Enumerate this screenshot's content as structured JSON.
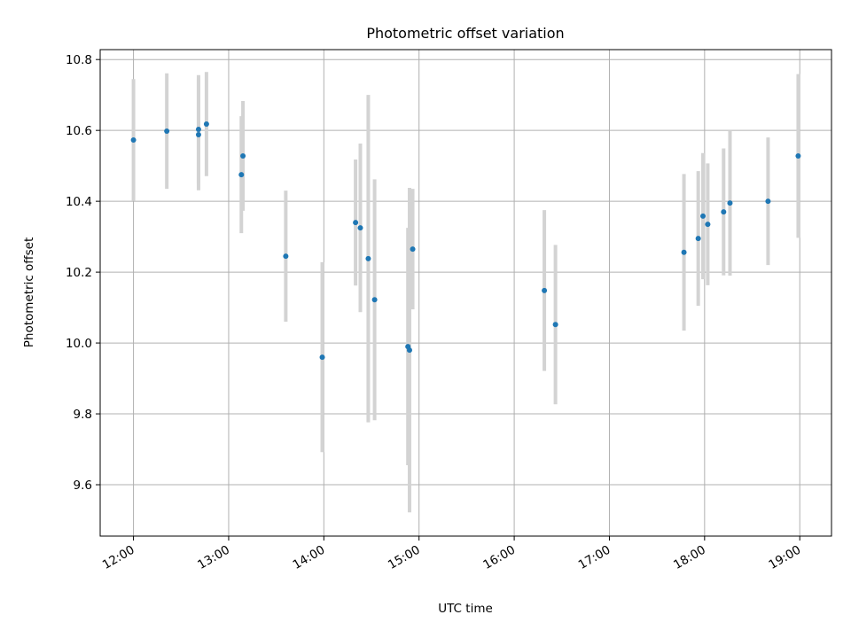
{
  "chart_data": {
    "type": "scatter",
    "title": "Photometric offset variation",
    "xlabel": "UTC time",
    "ylabel": "Photometric offset",
    "x_ticks": [
      "12:00",
      "13:00",
      "14:00",
      "15:00",
      "16:00",
      "17:00",
      "18:00",
      "19:00"
    ],
    "y_ticks": [
      "9.6",
      "9.8",
      "10.0",
      "10.2",
      "10.4",
      "10.6",
      "10.8"
    ],
    "xlim": [
      "11:39",
      "19:20"
    ],
    "ylim": [
      9.455,
      10.828
    ],
    "grid": true,
    "marker_color": "#1f77b4",
    "errorbar_color": "#d3d3d3",
    "points": [
      {
        "x": "12:00",
        "y": 10.573,
        "err": 0.172
      },
      {
        "x": "12:21",
        "y": 10.598,
        "err": 0.163
      },
      {
        "x": "12:41",
        "y": 10.603,
        "err": 0.153
      },
      {
        "x": "12:41",
        "y": 10.588,
        "err": 0.157
      },
      {
        "x": "12:46",
        "y": 10.618,
        "err": 0.147
      },
      {
        "x": "13:08",
        "y": 10.475,
        "err": 0.165
      },
      {
        "x": "13:09",
        "y": 10.528,
        "err": 0.155
      },
      {
        "x": "13:36",
        "y": 10.245,
        "err": 0.185
      },
      {
        "x": "13:59",
        "y": 9.96,
        "err": 0.268
      },
      {
        "x": "14:20",
        "y": 10.34,
        "err": 0.178
      },
      {
        "x": "14:23",
        "y": 10.325,
        "err": 0.238
      },
      {
        "x": "14:28",
        "y": 10.238,
        "err": 0.462
      },
      {
        "x": "14:32",
        "y": 10.122,
        "err": 0.34
      },
      {
        "x": "14:53",
        "y": 9.99,
        "err": 0.335
      },
      {
        "x": "14:54",
        "y": 9.98,
        "err": 0.458
      },
      {
        "x": "14:56",
        "y": 10.265,
        "err": 0.17
      },
      {
        "x": "16:19",
        "y": 10.148,
        "err": 0.227
      },
      {
        "x": "16:26",
        "y": 10.052,
        "err": 0.225
      },
      {
        "x": "17:47",
        "y": 10.256,
        "err": 0.221
      },
      {
        "x": "17:56",
        "y": 10.295,
        "err": 0.19
      },
      {
        "x": "17:59",
        "y": 10.358,
        "err": 0.178
      },
      {
        "x": "18:02",
        "y": 10.335,
        "err": 0.172
      },
      {
        "x": "18:12",
        "y": 10.37,
        "err": 0.179
      },
      {
        "x": "18:16",
        "y": 10.395,
        "err": 0.205
      },
      {
        "x": "18:40",
        "y": 10.4,
        "err": 0.18
      },
      {
        "x": "18:59",
        "y": 10.528,
        "err": 0.231
      }
    ]
  }
}
